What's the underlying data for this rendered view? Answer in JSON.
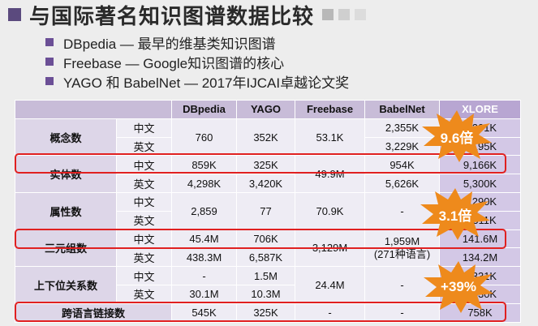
{
  "title": "与国际著名知识图谱数据比较",
  "bullets": [
    "DBpedia — 最早的维基类知识图谱",
    "Freebase — Google知识图谱的核心",
    "YAGO 和 BabelNet — 2017年IJCAI卓越论文奖"
  ],
  "table": {
    "headers": [
      "DBpedia",
      "YAGO",
      "Freebase",
      "BabelNet",
      "XLORE"
    ],
    "langs": {
      "zh": "中文",
      "en": "英文"
    },
    "rows": {
      "concept": {
        "label": "概念数",
        "dbpedia": "760",
        "yago": "352K",
        "freebase": "53.1K",
        "babel_zh": "2,355K",
        "babel_en": "3,229K",
        "xlore_zh": "2,201K",
        "xlore_en": "1,195K"
      },
      "entity": {
        "label": "实体数",
        "dbpedia_zh": "859K",
        "dbpedia_en": "4,298K",
        "yago_zh": "325K",
        "yago_en": "3,420K",
        "freebase": "49.9M",
        "babel_zh": "954K",
        "babel_en": "5,626K",
        "xlore_zh": "9,166K",
        "xlore_en": "5,300K"
      },
      "property": {
        "label": "属性数",
        "dbpedia": "2,859",
        "yago": "77",
        "freebase": "70.9K",
        "babel": "-",
        "xlore_zh": "2,290K",
        "xlore_en": "2,311K"
      },
      "triple": {
        "label": "三元组数",
        "dbpedia_zh": "45.4M",
        "dbpedia_en": "438.3M",
        "yago_zh": "706K",
        "yago_en": "6,587K",
        "freebase": "3,129M",
        "babel": "1,959M",
        "babel_note": "(271种语言)",
        "xlore_zh": "141.6M",
        "xlore_en": "134.2M"
      },
      "hierarchy": {
        "label": "上下位关系数",
        "dbpedia_zh": "-",
        "dbpedia_en": "30.1M",
        "yago_zh": "1.5M",
        "yago_en": "10.3M",
        "freebase": "24.4M",
        "babel": "-",
        "xlore_zh": "2,331K",
        "xlore_en": "1,530K"
      },
      "crosslingual": {
        "label": "跨语言链接数",
        "dbpedia": "545K",
        "yago": "325K",
        "freebase": "-",
        "babel": "-",
        "xlore": "758K"
      }
    }
  },
  "bursts": [
    "9.6倍",
    "3.1倍",
    "+39%"
  ],
  "colors": {
    "accent": "#5b4a7e",
    "burst": "#ee8a1c",
    "highlight_border": "#e02020"
  }
}
